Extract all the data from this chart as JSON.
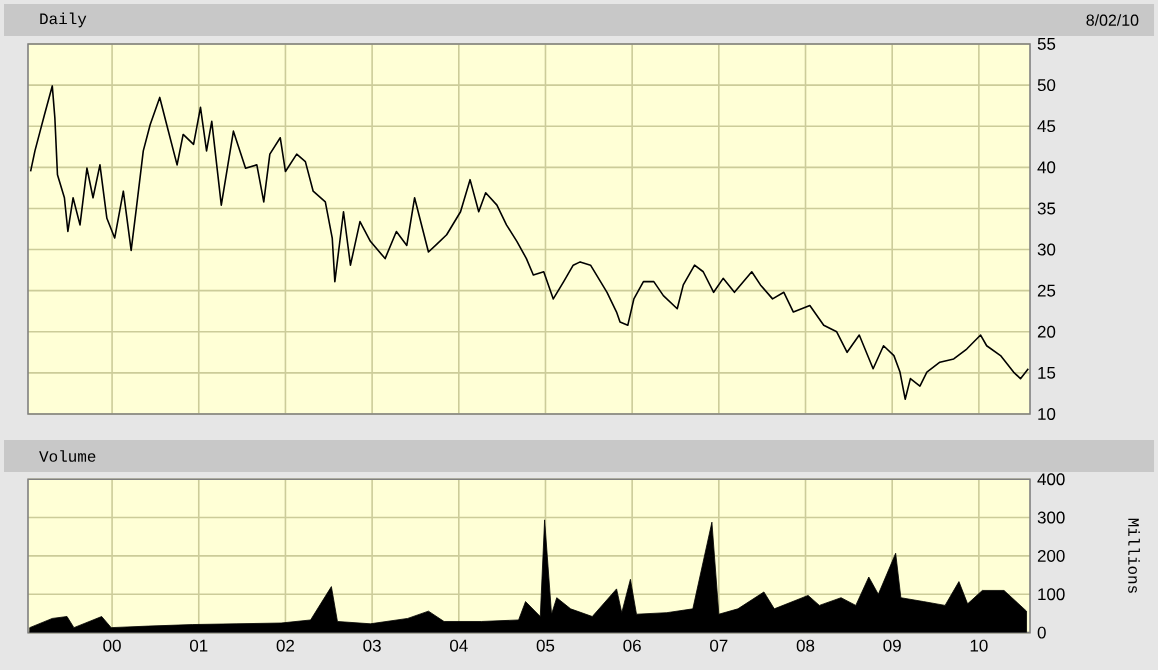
{
  "chart_data": [
    {
      "type": "line",
      "title": "Daily",
      "annotations": [
        "8/02/10"
      ],
      "color": "#000000",
      "grid": true,
      "tick_labels": "y",
      "xlim": [
        1999.03,
        2010.59
      ],
      "ylim": [
        10,
        55
      ],
      "yticks": [
        10,
        15,
        20,
        25,
        30,
        35,
        40,
        45,
        50,
        55
      ],
      "xticks": [
        {
          "value": 2000,
          "label": null
        },
        {
          "value": 2001,
          "label": null
        },
        {
          "value": 2002,
          "label": null
        },
        {
          "value": 2003,
          "label": null
        },
        {
          "value": 2004,
          "label": null
        },
        {
          "value": 2005,
          "label": null
        },
        {
          "value": 2006,
          "label": null
        },
        {
          "value": 2007,
          "label": null
        },
        {
          "value": 2008,
          "label": null
        },
        {
          "value": 2009,
          "label": null
        },
        {
          "value": 2010,
          "label": null
        }
      ],
      "x": [
        1999.06,
        1999.11,
        1999.17,
        1999.22,
        1999.31,
        1999.34,
        1999.37,
        1999.45,
        1999.49,
        1999.55,
        1999.63,
        1999.71,
        1999.78,
        1999.86,
        1999.94,
        2000.03,
        2000.13,
        2000.22,
        2000.28,
        2000.36,
        2000.44,
        2000.55,
        2000.62,
        2000.75,
        2000.82,
        2000.94,
        2001.02,
        2001.09,
        2001.15,
        2001.26,
        2001.4,
        2001.54,
        2001.67,
        2001.75,
        2001.82,
        2001.94,
        2002.0,
        2002.13,
        2002.23,
        2002.32,
        2002.46,
        2002.54,
        2002.57,
        2002.67,
        2002.75,
        2002.86,
        2002.98,
        2003.15,
        2003.28,
        2003.4,
        2003.49,
        2003.65,
        2003.75,
        2003.86,
        2004.02,
        2004.13,
        2004.23,
        2004.31,
        2004.44,
        2004.55,
        2004.67,
        2004.78,
        2004.86,
        2004.98,
        2005.09,
        2005.21,
        2005.32,
        2005.4,
        2005.52,
        2005.71,
        2005.82,
        2005.86,
        2005.95,
        2006.02,
        2006.13,
        2006.25,
        2006.36,
        2006.52,
        2006.59,
        2006.72,
        2006.82,
        2006.94,
        2007.05,
        2007.18,
        2007.38,
        2007.48,
        2007.62,
        2007.75,
        2007.86,
        2008.05,
        2008.21,
        2008.36,
        2008.48,
        2008.62,
        2008.78,
        2008.9,
        2009.02,
        2009.09,
        2009.15,
        2009.21,
        2009.32,
        2009.4,
        2009.55,
        2009.71,
        2009.86,
        2010.02,
        2010.09,
        2010.25,
        2010.4,
        2010.48,
        2010.57
      ],
      "values": [
        39.5,
        42.0,
        44.4,
        46.4,
        49.9,
        46.0,
        39.1,
        36.3,
        32.2,
        36.3,
        33.0,
        39.9,
        36.3,
        40.3,
        33.8,
        31.4,
        37.1,
        29.9,
        35.0,
        42.0,
        45.2,
        48.5,
        45.6,
        40.3,
        44.0,
        42.8,
        47.3,
        42.0,
        45.6,
        35.4,
        44.4,
        39.9,
        40.3,
        35.8,
        41.6,
        43.6,
        39.5,
        41.6,
        40.7,
        37.1,
        35.8,
        31.4,
        26.1,
        34.6,
        28.1,
        33.4,
        31.0,
        28.9,
        32.2,
        30.5,
        36.3,
        29.7,
        30.7,
        31.8,
        34.6,
        38.5,
        34.6,
        36.9,
        35.4,
        33.0,
        31.0,
        28.9,
        26.9,
        27.3,
        24.0,
        26.1,
        28.1,
        28.5,
        28.1,
        24.8,
        22.4,
        21.2,
        20.8,
        24.0,
        26.1,
        26.1,
        24.4,
        22.8,
        25.7,
        28.1,
        27.3,
        24.8,
        26.5,
        24.8,
        27.3,
        25.7,
        24.0,
        24.8,
        22.4,
        23.2,
        20.8,
        20.0,
        17.5,
        19.6,
        15.5,
        18.3,
        17.1,
        15.1,
        11.8,
        14.3,
        13.4,
        15.1,
        16.3,
        16.7,
        17.9,
        19.6,
        18.3,
        17.1,
        15.1,
        14.3,
        15.5
      ]
    },
    {
      "type": "area",
      "title": "Volume",
      "ylabel": "Millions",
      "color": "#000000",
      "grid": true,
      "xlim": [
        1999.03,
        2010.59
      ],
      "ylim": [
        0,
        400
      ],
      "yticks": [
        0,
        100,
        200,
        300,
        400
      ],
      "xticks": [
        {
          "value": 2000,
          "label": "00"
        },
        {
          "value": 2001,
          "label": "01"
        },
        {
          "value": 2002,
          "label": "02"
        },
        {
          "value": 2003,
          "label": "03"
        },
        {
          "value": 2004,
          "label": "04"
        },
        {
          "value": 2005,
          "label": "05"
        },
        {
          "value": 2006,
          "label": "06"
        },
        {
          "value": 2007,
          "label": "07"
        },
        {
          "value": 2008,
          "label": "08"
        },
        {
          "value": 2009,
          "label": "09"
        },
        {
          "value": 2010,
          "label": "10"
        }
      ],
      "x": [
        1999.05,
        1999.31,
        1999.48,
        1999.56,
        1999.88,
        1999.99,
        2000.42,
        2000.93,
        2001.44,
        2001.95,
        2002.29,
        2002.53,
        2002.6,
        2002.98,
        2003.41,
        2003.65,
        2003.83,
        2004.26,
        2004.69,
        2004.77,
        2004.94,
        2004.99,
        2005.07,
        2005.13,
        2005.29,
        2005.54,
        2005.82,
        2005.88,
        2005.98,
        2006.05,
        2006.4,
        2006.7,
        2006.92,
        2007.0,
        2007.22,
        2007.52,
        2007.64,
        2008.03,
        2008.16,
        2008.41,
        2008.58,
        2008.73,
        2008.84,
        2009.04,
        2009.1,
        2009.36,
        2009.61,
        2009.77,
        2009.87,
        2010.04,
        2010.29,
        2010.55
      ],
      "values": [
        13,
        37,
        42,
        13,
        42,
        13,
        17,
        21,
        23,
        25,
        33,
        120,
        29,
        23,
        37,
        56,
        29,
        29,
        33,
        81,
        42,
        294,
        48,
        91,
        62,
        42,
        114,
        52,
        139,
        48,
        52,
        62,
        288,
        48,
        62,
        106,
        62,
        97,
        71,
        91,
        71,
        145,
        100,
        207,
        91,
        81,
        71,
        133,
        75,
        110,
        110,
        56
      ]
    }
  ]
}
